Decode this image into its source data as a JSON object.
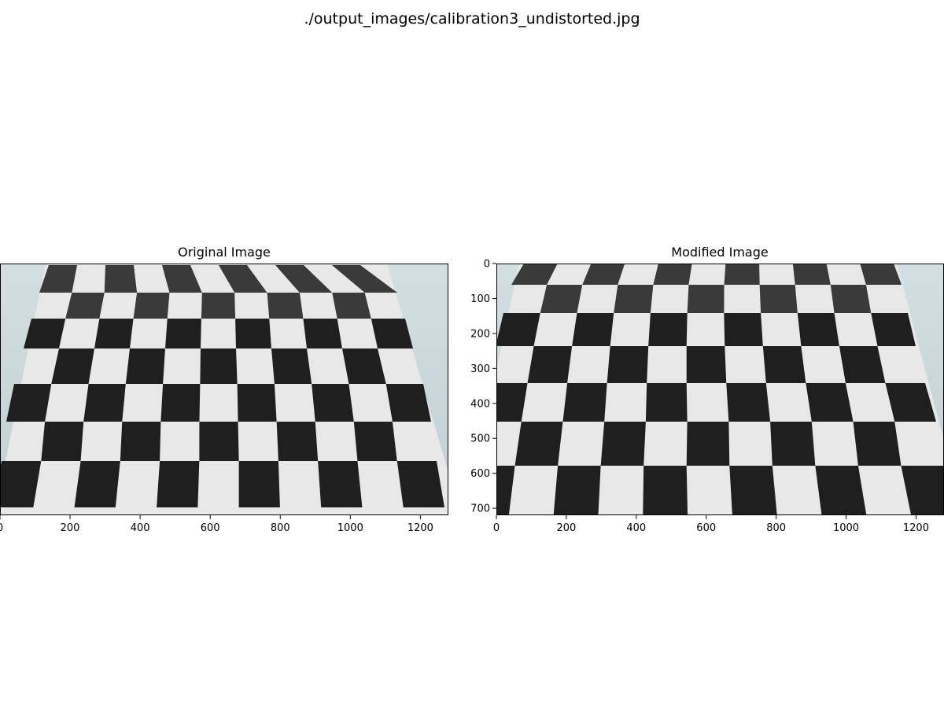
{
  "figure_title": "./output_images/calibration3_undistorted.jpg",
  "panels": [
    {
      "title": "Original Image",
      "x_ticks": [
        0,
        200,
        400,
        600,
        800,
        1000,
        1200
      ],
      "y_ticks": [],
      "x_range": [
        0,
        1280
      ],
      "y_range": [
        720,
        0
      ]
    },
    {
      "title": "Modified Image",
      "x_ticks": [
        0,
        200,
        400,
        600,
        800,
        1000,
        1200
      ],
      "y_ticks": [
        0,
        100,
        200,
        300,
        400,
        500,
        600,
        700
      ],
      "x_range": [
        0,
        1280
      ],
      "y_range": [
        720,
        0
      ]
    }
  ],
  "colors": {
    "background_wall": "#c9d9dc",
    "paper": "#e9e9e9",
    "dark_square": "#1f1f1f",
    "axis": "#000000"
  }
}
